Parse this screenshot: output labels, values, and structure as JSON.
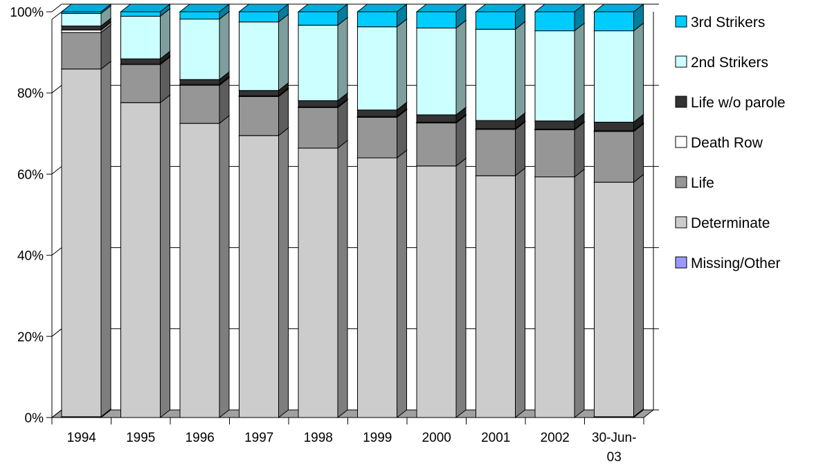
{
  "chart_data": {
    "type": "bar",
    "stacked": true,
    "percent_stacked": true,
    "three_d": true,
    "categories": [
      "1994",
      "1995",
      "1996",
      "1997",
      "1998",
      "1999",
      "2000",
      "2001",
      "2002",
      "30-Jun-03"
    ],
    "y_ticks": [
      "0%",
      "20%",
      "40%",
      "60%",
      "80%",
      "100%"
    ],
    "ylim": [
      0,
      100
    ],
    "grid": true,
    "legend_position": "right",
    "series": [
      {
        "name": "Missing/Other",
        "color": "#9999ff",
        "values": [
          0.2,
          0.0,
          0.0,
          0.0,
          0.0,
          0.0,
          0.0,
          0.0,
          0.0,
          0.2
        ]
      },
      {
        "name": "Determinate",
        "color": "#cccccc",
        "values": [
          85.7,
          77.6,
          72.5,
          69.5,
          66.4,
          64.0,
          62.0,
          59.6,
          59.3,
          57.8
        ]
      },
      {
        "name": "Life",
        "color": "#969696",
        "values": [
          9.0,
          9.4,
          9.4,
          9.6,
          10.0,
          10.0,
          10.6,
          11.4,
          11.6,
          12.5
        ]
      },
      {
        "name": "Death Row",
        "color": "#ffffff",
        "values": [
          0.6,
          0.2,
          0.2,
          0.2,
          0.2,
          0.2,
          0.2,
          0.2,
          0.2,
          0.2
        ]
      },
      {
        "name": "Life w/o parole",
        "color": "#333333",
        "values": [
          1.0,
          1.2,
          1.2,
          1.3,
          1.5,
          1.6,
          1.8,
          2.0,
          2.0,
          2.1
        ]
      },
      {
        "name": "2nd Strikers",
        "color": "#ccffff",
        "values": [
          3.1,
          10.5,
          14.9,
          16.9,
          18.6,
          20.5,
          21.4,
          22.5,
          22.2,
          22.5
        ]
      },
      {
        "name": "3rd Strikers",
        "color": "#00ccff",
        "values": [
          0.4,
          1.1,
          1.8,
          2.5,
          3.3,
          3.7,
          4.0,
          4.3,
          4.7,
          4.7
        ]
      }
    ]
  }
}
